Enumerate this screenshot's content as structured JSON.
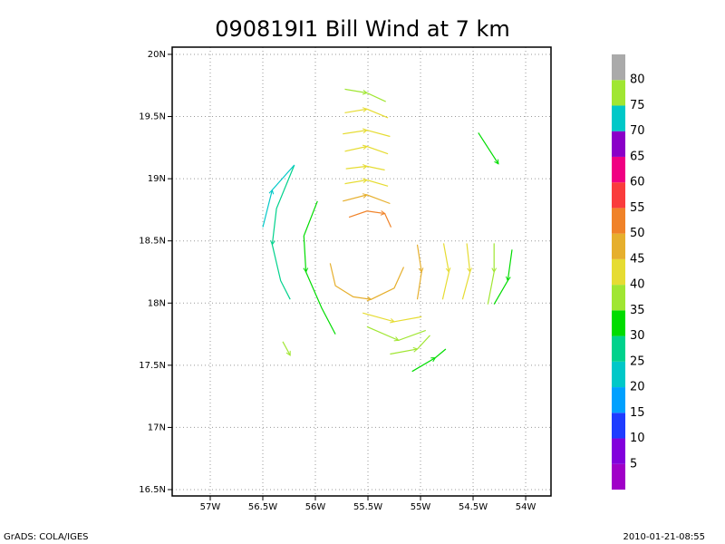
{
  "chart_data": {
    "type": "streamline",
    "title": "090819I1 Bill Wind at 7 km",
    "xlim": [
      -57.362,
      -53.759
    ],
    "ylim": [
      16.449,
      20.058
    ],
    "xticks": [
      {
        "value": -57,
        "label": "57W"
      },
      {
        "value": -56.5,
        "label": "56.5W"
      },
      {
        "value": -56,
        "label": "56W"
      },
      {
        "value": -55.5,
        "label": "55.5W"
      },
      {
        "value": -55,
        "label": "55W"
      },
      {
        "value": -54.5,
        "label": "54.5W"
      },
      {
        "value": -54,
        "label": "54W"
      }
    ],
    "yticks": [
      {
        "value": 16.5,
        "label": "16.5N"
      },
      {
        "value": 17,
        "label": "17N"
      },
      {
        "value": 17.5,
        "label": "17.5N"
      },
      {
        "value": 18,
        "label": "18N"
      },
      {
        "value": 18.5,
        "label": "18.5N"
      },
      {
        "value": 19,
        "label": "19N"
      },
      {
        "value": 19.5,
        "label": "19.5N"
      },
      {
        "value": 20,
        "label": "20N"
      }
    ],
    "grid": true,
    "colorbar": {
      "levels": [
        5,
        10,
        15,
        20,
        25,
        30,
        35,
        40,
        45,
        50,
        55,
        60,
        65,
        70,
        75,
        80
      ],
      "colors": [
        "#a000c8",
        "#8200dc",
        "#1e3cff",
        "#00a0ff",
        "#00c8c8",
        "#00d28c",
        "#00dc00",
        "#a0e632",
        "#e6dc32",
        "#e6af2d",
        "#f08228",
        "#fa3c3c",
        "#f00082",
        "#8a00c8",
        "#00c8c8",
        "#a0e632",
        "#aaaaaa"
      ]
    },
    "streamlines": [
      {
        "x": [
          -55.72,
          -55.51,
          -55.33
        ],
        "y": [
          19.72,
          19.69,
          19.62
        ],
        "speed": 36
      },
      {
        "x": [
          -55.72,
          -55.51,
          -55.31
        ],
        "y": [
          19.53,
          19.56,
          19.49
        ],
        "speed": 40
      },
      {
        "x": [
          -55.74,
          -55.51,
          -55.29
        ],
        "y": [
          19.36,
          19.39,
          19.34
        ],
        "speed": 42
      },
      {
        "x": [
          -55.72,
          -55.51,
          -55.31
        ],
        "y": [
          19.22,
          19.26,
          19.2
        ],
        "speed": 44
      },
      {
        "x": [
          -55.71,
          -55.51,
          -55.34
        ],
        "y": [
          19.08,
          19.1,
          19.07
        ],
        "speed": 42
      },
      {
        "x": [
          -55.72,
          -55.51,
          -55.31
        ],
        "y": [
          18.96,
          18.99,
          18.94
        ],
        "speed": 44
      },
      {
        "x": [
          -55.74,
          -55.51,
          -55.29
        ],
        "y": [
          18.82,
          18.87,
          18.8
        ],
        "speed": 46
      },
      {
        "x": [
          -55.68,
          -55.51,
          -55.34,
          -55.28
        ],
        "y": [
          18.69,
          18.74,
          18.72,
          18.61
        ],
        "speed": 52
      },
      {
        "x": [
          -55.86,
          -55.81,
          -55.64,
          -55.47,
          -55.25,
          -55.16
        ],
        "y": [
          18.32,
          18.14,
          18.05,
          18.03,
          18.12,
          18.29
        ],
        "speed": 47
      },
      {
        "x": [
          -55.98,
          -56.11,
          -56.09,
          -55.94,
          -55.81
        ],
        "y": [
          18.82,
          18.54,
          18.25,
          17.96,
          17.75
        ],
        "speed": 34
      },
      {
        "x": [
          -56.2,
          -56.37,
          -56.41,
          -56.33,
          -56.24
        ],
        "y": [
          19.11,
          18.76,
          18.47,
          18.18,
          18.03
        ],
        "speed": 27
      },
      {
        "x": [
          -56.5,
          -56.41,
          -56.2
        ],
        "y": [
          18.61,
          18.91,
          19.11
        ],
        "speed": 24
      },
      {
        "x": [
          -55.55,
          -55.25,
          -54.99
        ],
        "y": [
          17.92,
          17.85,
          17.89
        ],
        "speed": 42
      },
      {
        "x": [
          -55.51,
          -55.21,
          -54.95
        ],
        "y": [
          17.81,
          17.7,
          17.78
        ],
        "speed": 38
      },
      {
        "x": [
          -55.29,
          -55.03,
          -54.91
        ],
        "y": [
          17.59,
          17.63,
          17.74
        ],
        "speed": 35
      },
      {
        "x": [
          -55.08,
          -54.86,
          -54.76
        ],
        "y": [
          17.45,
          17.56,
          17.63
        ],
        "speed": 34
      },
      {
        "x": [
          -55.03,
          -54.99,
          -55.03
        ],
        "y": [
          18.47,
          18.25,
          18.03
        ],
        "speed": 48
      },
      {
        "x": [
          -54.78,
          -54.73,
          -54.79
        ],
        "y": [
          18.48,
          18.25,
          18.03
        ],
        "speed": 44
      },
      {
        "x": [
          -54.56,
          -54.53,
          -54.6
        ],
        "y": [
          18.48,
          18.25,
          18.03
        ],
        "speed": 40
      },
      {
        "x": [
          -54.3,
          -54.3,
          -54.36
        ],
        "y": [
          18.48,
          18.25,
          17.99
        ],
        "speed": 38
      },
      {
        "x": [
          -54.13,
          -54.17,
          -54.3
        ],
        "y": [
          18.43,
          18.18,
          17.99
        ],
        "speed": 33
      },
      {
        "x": [
          -54.45,
          -54.26
        ],
        "y": [
          19.37,
          19.12
        ],
        "speed": 33
      },
      {
        "x": [
          -56.31,
          -56.24
        ],
        "y": [
          17.69,
          17.58
        ],
        "speed": 36
      }
    ]
  },
  "footer": {
    "left": "GrADS: COLA/IGES",
    "right": "2010-01-21-08:55"
  }
}
